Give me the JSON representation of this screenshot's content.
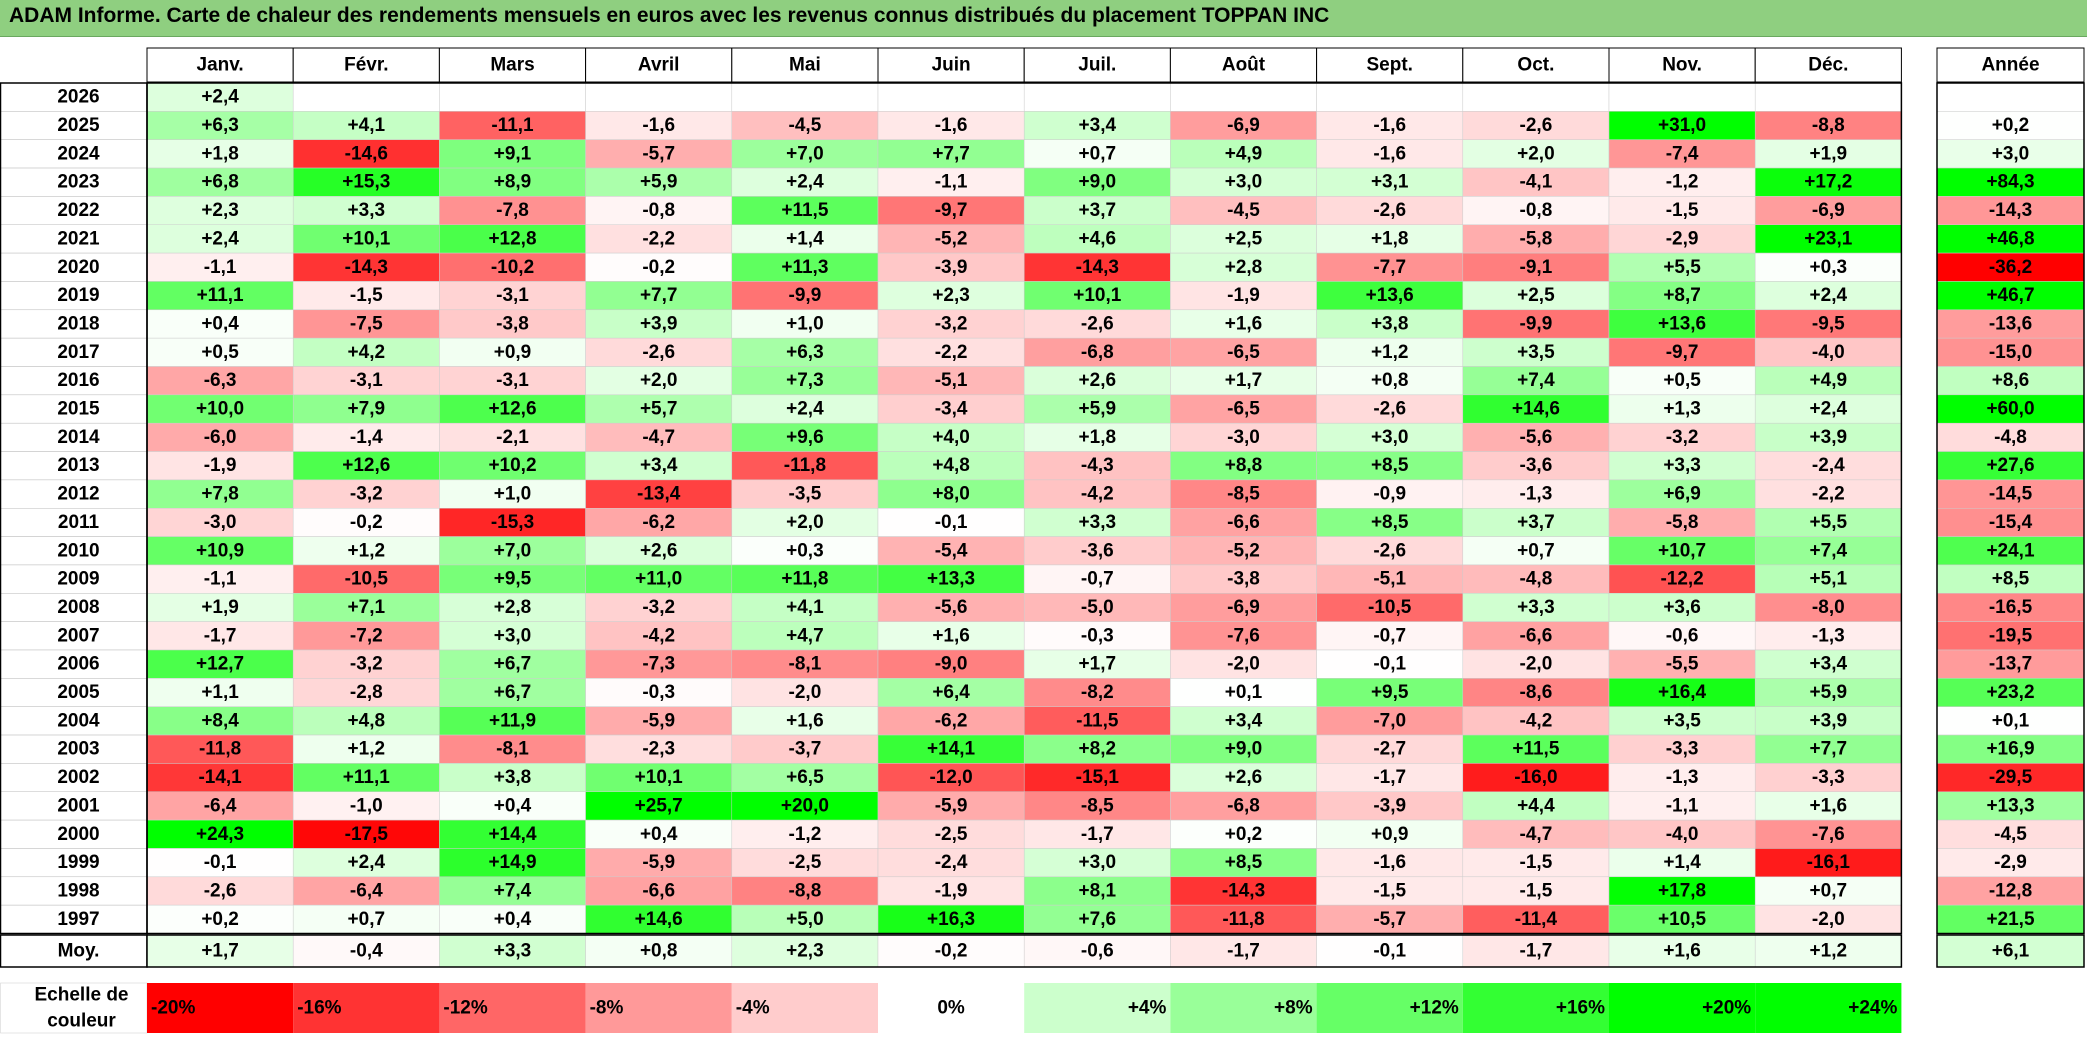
{
  "title": "ADAM Informe. Carte de chaleur des rendements mensuels en euros avec les revenus connus distribués du placement TOPPAN INC",
  "chart_data": {
    "type": "heatmap",
    "columns": [
      "Janv.",
      "Févr.",
      "Mars",
      "Avril",
      "Mai",
      "Juin",
      "Juil.",
      "Août",
      "Sept.",
      "Oct.",
      "Nov.",
      "Déc."
    ],
    "annual_header": "Année",
    "rows": [
      {
        "year": "2026",
        "values": [
          "+2,4",
          "",
          "",
          "",
          "",
          "",
          "",
          "",
          "",
          "",
          "",
          ""
        ],
        "annual": ""
      },
      {
        "year": "2025",
        "values": [
          "+6,3",
          "+4,1",
          "-11,1",
          "-1,6",
          "-4,5",
          "-1,6",
          "+3,4",
          "-6,9",
          "-1,6",
          "-2,6",
          "+31,0",
          "-8,8"
        ],
        "annual": "+0,2"
      },
      {
        "year": "2024",
        "values": [
          "+1,8",
          "-14,6",
          "+9,1",
          "-5,7",
          "+7,0",
          "+7,7",
          "+0,7",
          "+4,9",
          "-1,6",
          "+2,0",
          "-7,4",
          "+1,9"
        ],
        "annual": "+3,0"
      },
      {
        "year": "2023",
        "values": [
          "+6,8",
          "+15,3",
          "+8,9",
          "+5,9",
          "+2,4",
          "-1,1",
          "+9,0",
          "+3,0",
          "+3,1",
          "-4,1",
          "-1,2",
          "+17,2"
        ],
        "annual": "+84,3"
      },
      {
        "year": "2022",
        "values": [
          "+2,3",
          "+3,3",
          "-7,8",
          "-0,8",
          "+11,5",
          "-9,7",
          "+3,7",
          "-4,5",
          "-2,6",
          "-0,8",
          "-1,5",
          "-6,9"
        ],
        "annual": "-14,3"
      },
      {
        "year": "2021",
        "values": [
          "+2,4",
          "+10,1",
          "+12,8",
          "-2,2",
          "+1,4",
          "-5,2",
          "+4,6",
          "+2,5",
          "+1,8",
          "-5,8",
          "-2,9",
          "+23,1"
        ],
        "annual": "+46,8"
      },
      {
        "year": "2020",
        "values": [
          "-1,1",
          "-14,3",
          "-10,2",
          "-0,2",
          "+11,3",
          "-3,9",
          "-14,3",
          "+2,8",
          "-7,7",
          "-9,1",
          "+5,5",
          "+0,3"
        ],
        "annual": "-36,2"
      },
      {
        "year": "2019",
        "values": [
          "+11,1",
          "-1,5",
          "-3,1",
          "+7,7",
          "-9,9",
          "+2,3",
          "+10,1",
          "-1,9",
          "+13,6",
          "+2,5",
          "+8,7",
          "+2,4"
        ],
        "annual": "+46,7"
      },
      {
        "year": "2018",
        "values": [
          "+0,4",
          "-7,5",
          "-3,8",
          "+3,9",
          "+1,0",
          "-3,2",
          "-2,6",
          "+1,6",
          "+3,8",
          "-9,9",
          "+13,6",
          "-9,5"
        ],
        "annual": "-13,6"
      },
      {
        "year": "2017",
        "values": [
          "+0,5",
          "+4,2",
          "+0,9",
          "-2,6",
          "+6,3",
          "-2,2",
          "-6,8",
          "-6,5",
          "+1,2",
          "+3,5",
          "-9,7",
          "-4,0"
        ],
        "annual": "-15,0"
      },
      {
        "year": "2016",
        "values": [
          "-6,3",
          "-3,1",
          "-3,1",
          "+2,0",
          "+7,3",
          "-5,1",
          "+2,6",
          "+1,7",
          "+0,8",
          "+7,4",
          "+0,5",
          "+4,9"
        ],
        "annual": "+8,6"
      },
      {
        "year": "2015",
        "values": [
          "+10,0",
          "+7,9",
          "+12,6",
          "+5,7",
          "+2,4",
          "-3,4",
          "+5,9",
          "-6,5",
          "-2,6",
          "+14,6",
          "+1,3",
          "+2,4"
        ],
        "annual": "+60,0"
      },
      {
        "year": "2014",
        "values": [
          "-6,0",
          "-1,4",
          "-2,1",
          "-4,7",
          "+9,6",
          "+4,0",
          "+1,8",
          "-3,0",
          "+3,0",
          "-5,6",
          "-3,2",
          "+3,9"
        ],
        "annual": "-4,8"
      },
      {
        "year": "2013",
        "values": [
          "-1,9",
          "+12,6",
          "+10,2",
          "+3,4",
          "-11,8",
          "+4,8",
          "-4,3",
          "+8,8",
          "+8,5",
          "-3,6",
          "+3,3",
          "-2,4"
        ],
        "annual": "+27,6"
      },
      {
        "year": "2012",
        "values": [
          "+7,8",
          "-3,2",
          "+1,0",
          "-13,4",
          "-3,5",
          "+8,0",
          "-4,2",
          "-8,5",
          "-0,9",
          "-1,3",
          "+6,9",
          "-2,2"
        ],
        "annual": "-14,5"
      },
      {
        "year": "2011",
        "values": [
          "-3,0",
          "-0,2",
          "-15,3",
          "-6,2",
          "+2,0",
          "-0,1",
          "+3,3",
          "-6,6",
          "+8,5",
          "+3,7",
          "-5,8",
          "+5,5"
        ],
        "annual": "-15,4"
      },
      {
        "year": "2010",
        "values": [
          "+10,9",
          "+1,2",
          "+7,0",
          "+2,6",
          "+0,3",
          "-5,4",
          "-3,6",
          "-5,2",
          "-2,6",
          "+0,7",
          "+10,7",
          "+7,4"
        ],
        "annual": "+24,1"
      },
      {
        "year": "2009",
        "values": [
          "-1,1",
          "-10,5",
          "+9,5",
          "+11,0",
          "+11,8",
          "+13,3",
          "-0,7",
          "-3,8",
          "-5,1",
          "-4,8",
          "-12,2",
          "+5,1"
        ],
        "annual": "+8,5"
      },
      {
        "year": "2008",
        "values": [
          "+1,9",
          "+7,1",
          "+2,8",
          "-3,2",
          "+4,1",
          "-5,6",
          "-5,0",
          "-6,9",
          "-10,5",
          "+3,3",
          "+3,6",
          "-8,0"
        ],
        "annual": "-16,5"
      },
      {
        "year": "2007",
        "values": [
          "-1,7",
          "-7,2",
          "+3,0",
          "-4,2",
          "+4,7",
          "+1,6",
          "-0,3",
          "-7,6",
          "-0,7",
          "-6,6",
          "-0,6",
          "-1,3"
        ],
        "annual": "-19,5"
      },
      {
        "year": "2006",
        "values": [
          "+12,7",
          "-3,2",
          "+6,7",
          "-7,3",
          "-8,1",
          "-9,0",
          "+1,7",
          "-2,0",
          "-0,1",
          "-2,0",
          "-5,5",
          "+3,4"
        ],
        "annual": "-13,7"
      },
      {
        "year": "2005",
        "values": [
          "+1,1",
          "-2,8",
          "+6,7",
          "-0,3",
          "-2,0",
          "+6,4",
          "-8,2",
          "+0,1",
          "+9,5",
          "-8,6",
          "+16,4",
          "+5,9"
        ],
        "annual": "+23,2"
      },
      {
        "year": "2004",
        "values": [
          "+8,4",
          "+4,8",
          "+11,9",
          "-5,9",
          "+1,6",
          "-6,2",
          "-11,5",
          "+3,4",
          "-7,0",
          "-4,2",
          "+3,5",
          "+3,9"
        ],
        "annual": "+0,1"
      },
      {
        "year": "2003",
        "values": [
          "-11,8",
          "+1,2",
          "-8,1",
          "-2,3",
          "-3,7",
          "+14,1",
          "+8,2",
          "+9,0",
          "-2,7",
          "+11,5",
          "-3,3",
          "+7,7"
        ],
        "annual": "+16,9"
      },
      {
        "year": "2002",
        "values": [
          "-14,1",
          "+11,1",
          "+3,8",
          "+10,1",
          "+6,5",
          "-12,0",
          "-15,1",
          "+2,6",
          "-1,7",
          "-16,0",
          "-1,3",
          "-3,3"
        ],
        "annual": "-29,5"
      },
      {
        "year": "2001",
        "values": [
          "-6,4",
          "-1,0",
          "+0,4",
          "+25,7",
          "+20,0",
          "-5,9",
          "-8,5",
          "-6,8",
          "-3,9",
          "+4,4",
          "-1,1",
          "+1,6"
        ],
        "annual": "+13,3"
      },
      {
        "year": "2000",
        "values": [
          "+24,3",
          "-17,5",
          "+14,4",
          "+0,4",
          "-1,2",
          "-2,5",
          "-1,7",
          "+0,2",
          "+0,9",
          "-4,7",
          "-4,0",
          "-7,6"
        ],
        "annual": "-4,5"
      },
      {
        "year": "1999",
        "values": [
          "-0,1",
          "+2,4",
          "+14,9",
          "-5,9",
          "-2,5",
          "-2,4",
          "+3,0",
          "+8,5",
          "-1,6",
          "-1,5",
          "+1,4",
          "-16,1"
        ],
        "annual": "-2,9"
      },
      {
        "year": "1998",
        "values": [
          "-2,6",
          "-6,4",
          "+7,4",
          "-6,6",
          "-8,8",
          "-1,9",
          "+8,1",
          "-14,3",
          "-1,5",
          "-1,5",
          "+17,8",
          "+0,7"
        ],
        "annual": "-12,8"
      },
      {
        "year": "1997",
        "values": [
          "+0,2",
          "+0,7",
          "+0,4",
          "+14,6",
          "+5,0",
          "+16,3",
          "+7,6",
          "-11,8",
          "-5,7",
          "-11,4",
          "+10,5",
          "-2,0"
        ],
        "annual": "+21,5"
      }
    ],
    "average": {
      "label": "Moy.",
      "values": [
        "+1,7",
        "-0,4",
        "+3,3",
        "+0,8",
        "+2,3",
        "-0,2",
        "-0,6",
        "-1,7",
        "-0,1",
        "-1,7",
        "+1,6",
        "+1,2"
      ],
      "annual": "+6,1"
    },
    "scale": {
      "title_lines": [
        "Echelle de",
        "couleur"
      ],
      "stops": [
        "-20%",
        "-16%",
        "-12%",
        "-8%",
        "-4%",
        "0%",
        "+4%",
        "+8%",
        "+12%",
        "+16%",
        "+20%",
        "+24%"
      ],
      "stop_values": [
        -20,
        -16,
        -12,
        -8,
        -4,
        0,
        4,
        8,
        12,
        16,
        20,
        24
      ]
    },
    "colors": {
      "negative_max": "#ff0000",
      "neutral": "#ffffff",
      "positive_max": "#00ff00",
      "header_bar": "#8fcf80"
    }
  }
}
